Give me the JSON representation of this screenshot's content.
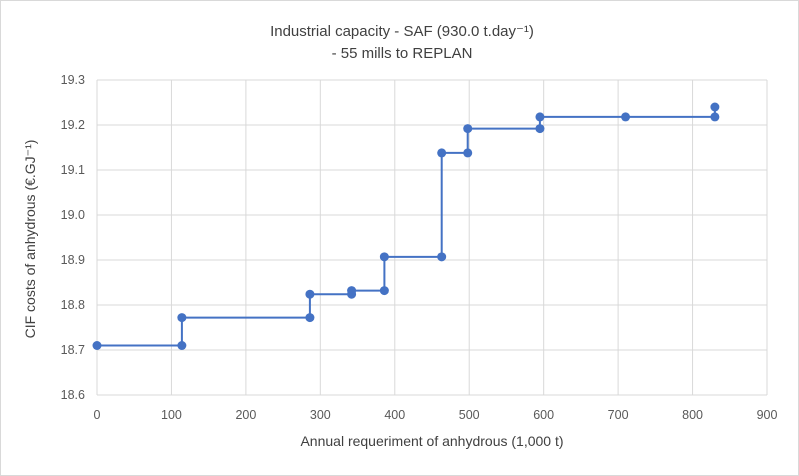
{
  "chart_data": {
    "type": "line",
    "title_line1": "Industrial capacity - SAF (930.0 t.day⁻¹)",
    "title_line2": "- 55 mills to REPLAN",
    "xlabel": "Annual requeriment of anhydrous (1,000 t)",
    "ylabel": "CIF costs of anhydrous (€.GJ⁻¹)",
    "xlim": [
      0,
      900
    ],
    "ylim": [
      18.6,
      19.3
    ],
    "x_ticks": [
      "0",
      "100",
      "200",
      "300",
      "400",
      "500",
      "600",
      "700",
      "800",
      "900"
    ],
    "y_ticks": [
      "18.6",
      "18.7",
      "18.8",
      "18.9",
      "19.0",
      "19.1",
      "19.2",
      "19.3"
    ],
    "grid": true,
    "series": [
      {
        "color": "#4472c4",
        "points": [
          [
            0,
            18.71
          ],
          [
            114,
            18.71
          ],
          [
            114,
            18.772
          ],
          [
            286,
            18.772
          ],
          [
            286,
            18.824
          ],
          [
            342,
            18.824
          ],
          [
            342,
            18.832
          ],
          [
            386,
            18.832
          ],
          [
            386,
            18.907
          ],
          [
            463,
            18.907
          ],
          [
            463,
            19.138
          ],
          [
            498,
            19.138
          ],
          [
            498,
            19.192
          ],
          [
            595,
            19.192
          ],
          [
            595,
            19.218
          ],
          [
            710,
            19.218
          ],
          [
            830,
            19.218
          ],
          [
            830,
            19.24
          ]
        ]
      }
    ]
  }
}
